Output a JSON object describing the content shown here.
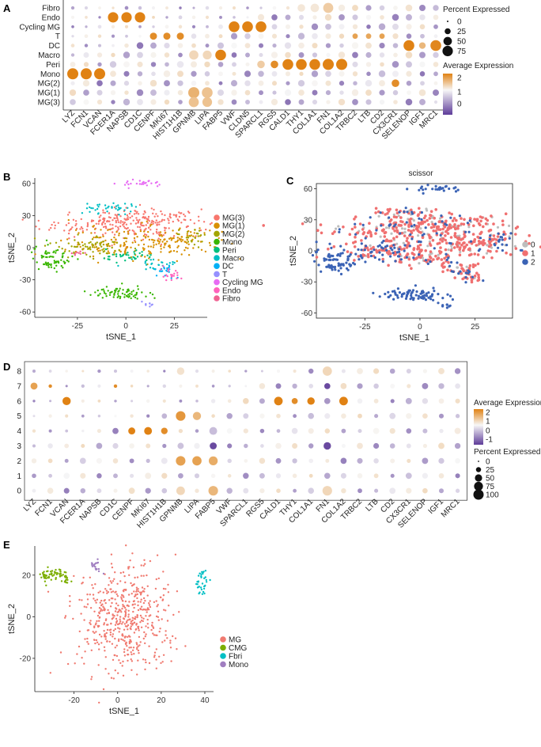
{
  "panel_labels": {
    "A": "A",
    "B": "B",
    "C": "C",
    "D": "D",
    "E": "E"
  },
  "colors": {
    "low": "#5e3c99",
    "mid": "#f7f7f7",
    "high": "#e08214",
    "grey": "#bdbdbd",
    "MG3": "#f8766d",
    "MG1": "#d89000",
    "MG2": "#a3a500",
    "Mono": "#39b600",
    "Peri": "#00bf7d",
    "Macro": "#00bfc4",
    "DC": "#00b0f6",
    "T": "#9590ff",
    "CyclingMG": "#e76bf3",
    "Endo": "#ff62bc",
    "Fibro": "#f06292",
    "scissor0": "#bdbdbd",
    "scissor1": "#f07070",
    "scissor2": "#3b63b5",
    "E_MG": "#f07a70",
    "E_CMG": "#7cae00",
    "E_Fbri": "#00bfc4",
    "E_Mono": "#a07ec0"
  },
  "chart_data": [
    {
      "id": "A",
      "type": "dotplot",
      "rows": [
        "Fibro",
        "Endo",
        "Cycling MG",
        "T",
        "DC",
        "Macro",
        "Peri",
        "Mono",
        "MG(2)",
        "MG(1)",
        "MG(3)"
      ],
      "genes": [
        "LYZ",
        "FCN1",
        "VCAN",
        "FCER1A",
        "NAPSB",
        "CD1C",
        "CENPF",
        "MKI67",
        "HIST1H1B",
        "GPNMB",
        "LIPA",
        "FABP5",
        "VWF",
        "CLDN5",
        "SPARCL1",
        "RGS5",
        "CALD1",
        "THY1",
        "COL1A1",
        "FN1",
        "COL1A2",
        "TRBC2",
        "LTB",
        "CD2",
        "CX3CR1",
        "SELENOP",
        "IGF1",
        "MRC1"
      ],
      "highlights": [
        {
          "row": "Endo",
          "gene": "FCER1A",
          "expr": 2.2,
          "pct": 75
        },
        {
          "row": "Endo",
          "gene": "NAPSB",
          "expr": 2.2,
          "pct": 75
        },
        {
          "row": "Endo",
          "gene": "CD1C",
          "expr": 2.2,
          "pct": 75
        },
        {
          "row": "Cycling MG",
          "gene": "VWF",
          "expr": 2.2,
          "pct": 80
        },
        {
          "row": "Cycling MG",
          "gene": "CLDN5",
          "expr": 2.2,
          "pct": 80
        },
        {
          "row": "Cycling MG",
          "gene": "SPARCL1",
          "expr": 2.2,
          "pct": 80
        },
        {
          "row": "T",
          "gene": "CENPF",
          "expr": 2.0,
          "pct": 35
        },
        {
          "row": "T",
          "gene": "MKI67",
          "expr": 2.0,
          "pct": 35
        },
        {
          "row": "T",
          "gene": "HIST1H1B",
          "expr": 2.0,
          "pct": 35
        },
        {
          "row": "T",
          "gene": "TRBC2",
          "expr": 1.6,
          "pct": 20
        },
        {
          "row": "T",
          "gene": "LTB",
          "expr": 1.5,
          "pct": 20
        },
        {
          "row": "T",
          "gene": "CD2",
          "expr": 1.6,
          "pct": 20
        },
        {
          "row": "DC",
          "gene": "SELENOP",
          "expr": 2.2,
          "pct": 80
        },
        {
          "row": "DC",
          "gene": "IGF1",
          "expr": 1.2,
          "pct": 30
        },
        {
          "row": "DC",
          "gene": "MRC1",
          "expr": 2.1,
          "pct": 80
        },
        {
          "row": "Macro",
          "gene": "FABP5",
          "expr": 2.2,
          "pct": 80
        },
        {
          "row": "Macro",
          "gene": "GPNMB",
          "expr": 0.6,
          "pct": 60
        },
        {
          "row": "Macro",
          "gene": "LIPA",
          "expr": 0.6,
          "pct": 55
        },
        {
          "row": "Peri",
          "gene": "RGS5",
          "expr": 2.0,
          "pct": 40
        },
        {
          "row": "Peri",
          "gene": "CALD1",
          "expr": 2.2,
          "pct": 80
        },
        {
          "row": "Peri",
          "gene": "THY1",
          "expr": 2.2,
          "pct": 80
        },
        {
          "row": "Peri",
          "gene": "COL1A1",
          "expr": 2.2,
          "pct": 80
        },
        {
          "row": "Peri",
          "gene": "FN1",
          "expr": 2.2,
          "pct": 85
        },
        {
          "row": "Peri",
          "gene": "COL1A2",
          "expr": 2.2,
          "pct": 85
        },
        {
          "row": "Peri",
          "gene": "SPARCL1",
          "expr": 0.8,
          "pct": 40
        },
        {
          "row": "Mono",
          "gene": "LYZ",
          "expr": 2.2,
          "pct": 85
        },
        {
          "row": "Mono",
          "gene": "FCN1",
          "expr": 2.2,
          "pct": 85
        },
        {
          "row": "Mono",
          "gene": "VCAN",
          "expr": 2.2,
          "pct": 85
        },
        {
          "row": "MG(2)",
          "gene": "CX3CR1",
          "expr": 2.0,
          "pct": 40
        },
        {
          "row": "MG(1)",
          "gene": "GPNMB",
          "expr": 1.3,
          "pct": 85
        },
        {
          "row": "MG(1)",
          "gene": "LIPA",
          "expr": 1.0,
          "pct": 80
        },
        {
          "row": "MG(3)",
          "gene": "GPNMB",
          "expr": 1.0,
          "pct": 70
        },
        {
          "row": "MG(3)",
          "gene": "LIPA",
          "expr": 1.0,
          "pct": 65
        },
        {
          "row": "Fibro",
          "gene": "FN1",
          "expr": 0.8,
          "pct": 70
        },
        {
          "row": "Fibro",
          "gene": "COL1A1",
          "expr": 0.3,
          "pct": 50
        },
        {
          "row": "Fibro",
          "gene": "THY1",
          "expr": 0.3,
          "pct": 40
        }
      ],
      "legend_pct": {
        "title": "Percent Expressed",
        "levels": [
          0,
          25,
          50,
          75
        ]
      },
      "legend_expr": {
        "title": "Average Expression",
        "ticks": [
          2,
          1,
          0
        ]
      }
    },
    {
      "id": "B",
      "type": "scatter",
      "xlabel": "tSNE_1",
      "ylabel": "tSNE_2",
      "xticks": [
        -25,
        0,
        25
      ],
      "yticks": [
        60,
        30,
        0,
        -30,
        -60
      ],
      "xlim": [
        -47,
        42
      ],
      "ylim": [
        -65,
        65
      ],
      "legend": [
        "MG(3)",
        "MG(1)",
        "MG(2)",
        "Mono",
        "Peri",
        "Macro",
        "DC",
        "T",
        "Cycling MG",
        "Endo",
        "Fibro"
      ]
    },
    {
      "id": "C",
      "type": "scatter",
      "title": "scissor",
      "xlabel": "tSNE_1",
      "ylabel": "tSNE_2",
      "xticks": [
        -25,
        0,
        25
      ],
      "yticks": [
        60,
        30,
        0,
        -30,
        -60
      ],
      "xlim": [
        -47,
        42
      ],
      "ylim": [
        -65,
        65
      ],
      "legend": [
        "0",
        "1",
        "2"
      ]
    },
    {
      "id": "D",
      "type": "dotplot",
      "rows": [
        "8",
        "7",
        "6",
        "5",
        "4",
        "3",
        "2",
        "1",
        "0"
      ],
      "genes": [
        "LYZ",
        "FCN1",
        "VCAN",
        "FCER1A",
        "NAPSB",
        "CD1C",
        "CENPF",
        "MKI67",
        "HIST1H1B",
        "GPNMB",
        "LIPA",
        "FABP5",
        "VWF",
        "SPARCL1",
        "RGS5",
        "CALD1",
        "THY1",
        "COL1A1",
        "FN1",
        "COL1A2",
        "TRBC2",
        "LTB",
        "CD2",
        "CX3CR1",
        "SELENOP",
        "IGF1",
        "MRC1"
      ],
      "highlights": [
        {
          "row": "7",
          "gene": "LYZ",
          "expr": 1.6,
          "pct": 40
        },
        {
          "row": "7",
          "gene": "FCN1",
          "expr": 2.0,
          "pct": 10
        },
        {
          "row": "7",
          "gene": "CD1C",
          "expr": 2.0,
          "pct": 10
        },
        {
          "row": "6",
          "gene": "VCAN",
          "expr": 2.2,
          "pct": 55
        },
        {
          "row": "6",
          "gene": "CALD1",
          "expr": 2.2,
          "pct": 60
        },
        {
          "row": "6",
          "gene": "THY1",
          "expr": 2.0,
          "pct": 30
        },
        {
          "row": "6",
          "gene": "COL1A1",
          "expr": 2.2,
          "pct": 45
        },
        {
          "row": "6",
          "gene": "COL1A2",
          "expr": 2.2,
          "pct": 60
        },
        {
          "row": "4",
          "gene": "CENPF",
          "expr": 2.2,
          "pct": 40
        },
        {
          "row": "4",
          "gene": "MKI67",
          "expr": 2.2,
          "pct": 50
        },
        {
          "row": "4",
          "gene": "HIST1H1B",
          "expr": 2.0,
          "pct": 35
        },
        {
          "row": "5",
          "gene": "GPNMB",
          "expr": 1.8,
          "pct": 75
        },
        {
          "row": "5",
          "gene": "LIPA",
          "expr": 1.2,
          "pct": 55
        },
        {
          "row": "2",
          "gene": "GPNMB",
          "expr": 1.6,
          "pct": 75
        },
        {
          "row": "2",
          "gene": "LIPA",
          "expr": 1.6,
          "pct": 70
        },
        {
          "row": "2",
          "gene": "FABP5",
          "expr": 1.4,
          "pct": 65
        },
        {
          "row": "0",
          "gene": "FABP5",
          "expr": 1.2,
          "pct": 75
        },
        {
          "row": "0",
          "gene": "GPNMB",
          "expr": 0.6,
          "pct": 60
        },
        {
          "row": "8",
          "gene": "FN1",
          "expr": 0.6,
          "pct": 70
        },
        {
          "row": "0",
          "gene": "FN1",
          "expr": 0.6,
          "pct": 75
        },
        {
          "row": "7",
          "gene": "FN1",
          "expr": -1.2,
          "pct": 30
        },
        {
          "row": "3",
          "gene": "FN1",
          "expr": -1.2,
          "pct": 45
        },
        {
          "row": "3",
          "gene": "FABP5",
          "expr": -1.2,
          "pct": 40
        },
        {
          "row": "4",
          "gene": "FABP5",
          "expr": -0.4,
          "pct": 50
        },
        {
          "row": "8",
          "gene": "GPNMB",
          "expr": 0.4,
          "pct": 45
        }
      ],
      "legend_expr": {
        "title": "Average Expression",
        "ticks": [
          2,
          1,
          0,
          -1
        ]
      },
      "legend_pct": {
        "title": "Percent Expressed",
        "levels": [
          0,
          25,
          50,
          75,
          100
        ]
      }
    },
    {
      "id": "E",
      "type": "scatter",
      "xlabel": "tSNE_1",
      "ylabel": "tSNE_2",
      "xticks": [
        -20,
        0,
        20,
        40
      ],
      "yticks": [
        20,
        0,
        -20
      ],
      "xlim": [
        -38,
        44
      ],
      "ylim": [
        -36,
        34
      ],
      "legend": [
        "MG",
        "CMG",
        "Fbri",
        "Mono"
      ]
    }
  ]
}
